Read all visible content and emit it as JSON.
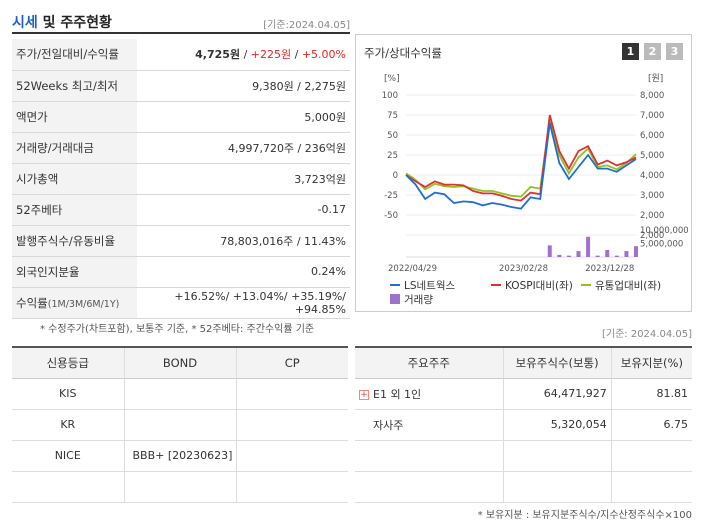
{
  "header": {
    "title_main": "시세",
    "title_rest": " 및 주주현황",
    "date": "[기준:2024.04.05]"
  },
  "quote": {
    "rows": [
      {
        "label": "주가/전일대비/수익률",
        "price": "4,725원",
        "change": "+225원",
        "pct": "+5.00%"
      },
      {
        "label": "52Weeks 최고/최저",
        "value": "9,380원 / 2,275원"
      },
      {
        "label": "액면가",
        "value": "5,000원"
      },
      {
        "label": "거래량/거래대금",
        "value": "4,997,720주 / 236억원"
      },
      {
        "label": "시가총액",
        "value": "3,723억원"
      },
      {
        "label": "52주베타",
        "value": "-0.17"
      },
      {
        "label": "발행주식수/유동비율",
        "value": "78,803,016주 / 11.43%"
      },
      {
        "label": "외국인지분율",
        "value": "0.24%"
      },
      {
        "label": "수익률",
        "label_small": "(1M/3M/6M/1Y)",
        "value": "+16.52%/ +13.04%/ +35.19%/ +94.85%"
      }
    ],
    "note": "* 수정주가(차트포함), 보통주 기준, * 52주베타: 주간수익률 기준"
  },
  "chart": {
    "title": "주가/상대수익률",
    "tabs": [
      "1",
      "2",
      "3"
    ],
    "active_tab": 0,
    "left_unit": "[%]",
    "right_unit": "[원]",
    "legend": [
      {
        "label": "LS네트웍스",
        "color": "#1f6fd0"
      },
      {
        "label": "KOSPI대비(좌)",
        "color": "#e03030"
      },
      {
        "label": "유통업대비(좌)",
        "color": "#8fc31f"
      },
      {
        "label": "거래량",
        "color": "#a070d0"
      }
    ]
  },
  "chart_data": {
    "type": "line",
    "x_ticks": [
      "2022/04/29",
      "2023/02/28",
      "2023/12/28"
    ],
    "left_axis": {
      "label": "[%]",
      "ticks": [
        100,
        75,
        50,
        25,
        0,
        -25,
        -50
      ],
      "range": [
        -50,
        100
      ]
    },
    "right_axis": {
      "label": "[원]",
      "ticks": [
        "8,000",
        "7,000",
        "6,000",
        "5,000",
        "4,000",
        "3,000",
        "2,000"
      ],
      "range": [
        2000,
        8000
      ]
    },
    "volume_axis": {
      "ticks": [
        "10,000,000",
        "5,000,000",
        "0"
      ],
      "range": [
        0,
        10000000
      ]
    },
    "series": [
      {
        "name": "LS네트웍스",
        "values": [
          0,
          -12,
          -30,
          -22,
          -24,
          -35,
          -33,
          -34,
          -38,
          -35,
          -37,
          -40,
          -42,
          -28,
          -30,
          65,
          15,
          -5,
          10,
          25,
          8,
          8,
          4,
          12,
          20
        ]
      },
      {
        "name": "KOSPI대비(좌)",
        "values": [
          0,
          -8,
          -15,
          -8,
          -12,
          -12,
          -13,
          -20,
          -23,
          -23,
          -26,
          -30,
          -32,
          -22,
          -24,
          75,
          30,
          8,
          30,
          36,
          13,
          18,
          12,
          16,
          22
        ]
      },
      {
        "name": "유통업대비(좌)",
        "values": [
          2,
          -6,
          -18,
          -11,
          -14,
          -15,
          -14,
          -17,
          -20,
          -20,
          -23,
          -26,
          -27,
          -15,
          -17,
          70,
          25,
          2,
          22,
          33,
          10,
          12,
          7,
          15,
          26
        ]
      }
    ],
    "volume": [
      0,
      0,
      0,
      0,
      0,
      0,
      0,
      0,
      0,
      0,
      0,
      0,
      0,
      0,
      0,
      4300000,
      800000,
      500000,
      2200000,
      7500000,
      500000,
      2600000,
      500000,
      2200000,
      4000000
    ]
  },
  "date2": "[기준: 2024.04.05]",
  "credit": {
    "headers": [
      "신용등급",
      "BOND",
      "CP"
    ],
    "rows": [
      {
        "agency": "KIS",
        "bond": "",
        "cp": ""
      },
      {
        "agency": "KR",
        "bond": "",
        "cp": ""
      },
      {
        "agency": "NICE",
        "bond": "BBB+  [20230623]",
        "cp": ""
      },
      {
        "agency": "",
        "bond": "",
        "cp": ""
      }
    ]
  },
  "holders": {
    "headers": [
      "주요주주",
      "보유주식수(보통)",
      "보유지분(%)"
    ],
    "rows": [
      {
        "name": "E1 외 1인",
        "shares": "64,471,927",
        "pct": "81.81"
      },
      {
        "name": "자사주",
        "shares": "5,320,054",
        "pct": "6.75"
      },
      {
        "name": "",
        "shares": "",
        "pct": ""
      },
      {
        "name": "",
        "shares": "",
        "pct": ""
      }
    ],
    "note": "* 보유지분 : 보유지분주식수/지수산정주식수×100"
  }
}
